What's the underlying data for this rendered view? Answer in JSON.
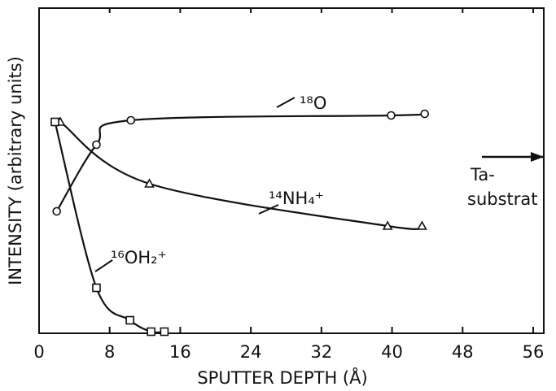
{
  "chart_data": {
    "type": "line",
    "xlabel": "SPUTTER DEPTH (Å)",
    "ylabel": "INTENSITY (arbitrary units)",
    "xlim": [
      0,
      57.2
    ],
    "xticks": [
      0,
      8,
      16,
      24,
      32,
      40,
      48,
      56
    ],
    "ylim": [
      0,
      100
    ],
    "series": [
      {
        "name": "¹⁸O",
        "color": "#111111",
        "marker": "circle",
        "x": [
          2.0,
          6.5,
          10.4,
          39.9,
          43.7
        ],
        "values": [
          37.5,
          58,
          65.5,
          67,
          67.5
        ]
      },
      {
        "name": "¹⁴NH₄⁺",
        "color": "#111111",
        "marker": "triangle",
        "x": [
          2.4,
          12.5,
          39.5,
          43.4
        ],
        "values": [
          65,
          46,
          33,
          33
        ]
      },
      {
        "name": "¹⁶OH₂⁺",
        "color": "#111111",
        "marker": "square",
        "x": [
          1.8,
          6.5,
          10.3,
          12.7,
          14.2
        ],
        "values": [
          65,
          14,
          4,
          0.5,
          0.5
        ]
      }
    ],
    "annotations": [
      "Ta-",
      "substrat"
    ]
  }
}
